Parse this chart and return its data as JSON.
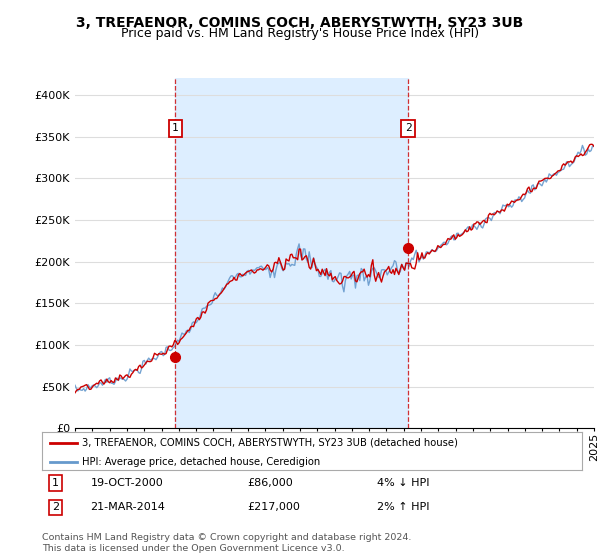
{
  "title": "3, TREFAENOR, COMINS COCH, ABERYSTWYTH, SY23 3UB",
  "subtitle": "Price paid vs. HM Land Registry's House Price Index (HPI)",
  "ylim": [
    0,
    420000
  ],
  "yticks": [
    0,
    50000,
    100000,
    150000,
    200000,
    250000,
    300000,
    350000,
    400000
  ],
  "ytick_labels": [
    "£0",
    "£50K",
    "£100K",
    "£150K",
    "£200K",
    "£250K",
    "£300K",
    "£350K",
    "£400K"
  ],
  "year_start": 1995,
  "year_end": 2025,
  "hpi_color": "#6699cc",
  "price_color": "#cc0000",
  "shade_color": "#ddeeff",
  "marker1_year": 2000.8,
  "marker1_value": 86000,
  "marker2_year": 2014.25,
  "marker2_value": 217000,
  "legend_label1": "3, TREFAENOR, COMINS COCH, ABERYSTWYTH, SY23 3UB (detached house)",
  "legend_label2": "HPI: Average price, detached house, Ceredigion",
  "annotation1_date": "19-OCT-2000",
  "annotation1_price": "£86,000",
  "annotation1_hpi": "4% ↓ HPI",
  "annotation2_date": "21-MAR-2014",
  "annotation2_price": "£217,000",
  "annotation2_hpi": "2% ↑ HPI",
  "footer": "Contains HM Land Registry data © Crown copyright and database right 2024.\nThis data is licensed under the Open Government Licence v3.0.",
  "bg_color": "#ffffff",
  "grid_color": "#dddddd",
  "title_fontsize": 10,
  "subtitle_fontsize": 9,
  "tick_fontsize": 8
}
